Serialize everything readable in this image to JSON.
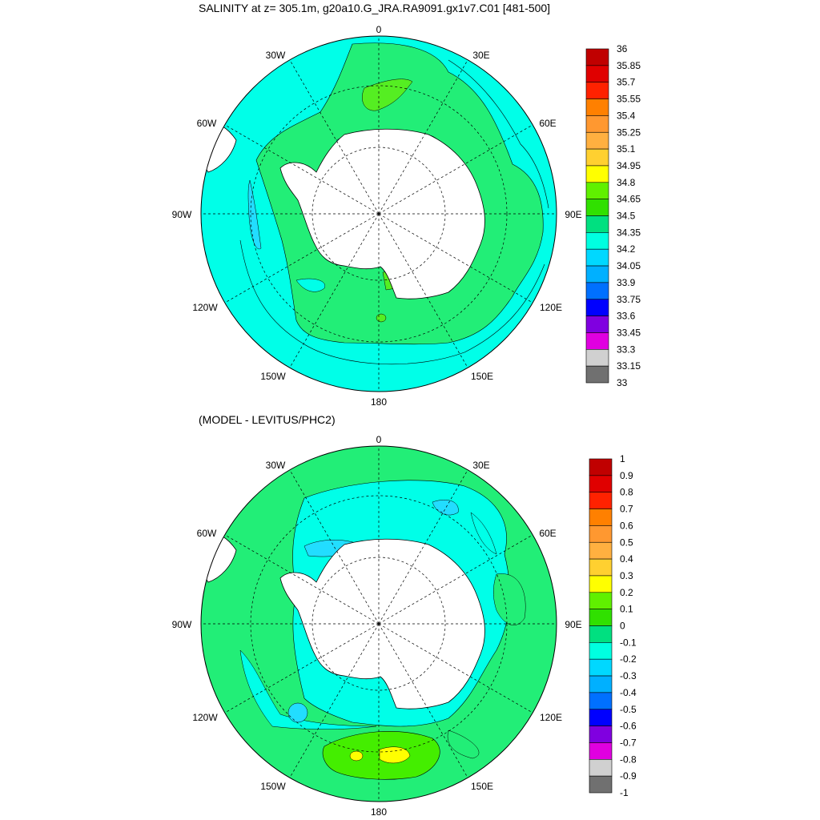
{
  "titles": {
    "top": "SALINITY at z= 305.1m, g20a10.G_JRA.RA9091.gx1v7.C01 [481-500]",
    "bottom": "(MODEL - LEVITUS/PHC2)"
  },
  "longitude_labels": {
    "l0": "0",
    "l30e": "30E",
    "l60e": "60E",
    "l90e": "90E",
    "l120e": "120E",
    "l150e": "150E",
    "l180": "180",
    "l150w": "150W",
    "l120w": "120W",
    "l90w": "90W",
    "l60w": "60W",
    "l30w": "30W"
  },
  "colorbars": {
    "salinity": {
      "labels": [
        "36",
        "35.85",
        "35.7",
        "35.55",
        "35.4",
        "35.25",
        "35.1",
        "34.95",
        "34.8",
        "34.65",
        "34.5",
        "34.35",
        "34.2",
        "34.05",
        "33.9",
        "33.75",
        "33.6",
        "33.45",
        "33.3",
        "33.15",
        "33"
      ],
      "colors": [
        "#c00000",
        "#e00000",
        "#ff2200",
        "#ff8000",
        "#ff9830",
        "#ffb040",
        "#ffd030",
        "#ffff00",
        "#60f000",
        "#30e000",
        "#00e080",
        "#00ffe0",
        "#00d8ff",
        "#00b0ff",
        "#0070ff",
        "#0000ff",
        "#8000e0",
        "#e000e0",
        "#d0d0d0",
        "#707070"
      ]
    },
    "anomaly": {
      "labels": [
        "1",
        "0.9",
        "0.8",
        "0.7",
        "0.6",
        "0.5",
        "0.4",
        "0.3",
        "0.2",
        "0.1",
        "0",
        "-0.1",
        "-0.2",
        "-0.3",
        "-0.4",
        "-0.5",
        "-0.6",
        "-0.7",
        "-0.8",
        "-0.9",
        "-1"
      ],
      "colors": [
        "#c00000",
        "#e00000",
        "#ff2200",
        "#ff8000",
        "#ff9830",
        "#ffb040",
        "#ffd030",
        "#ffff00",
        "#60f000",
        "#30e000",
        "#00e080",
        "#00ffe0",
        "#00d8ff",
        "#00b0ff",
        "#0070ff",
        "#0000ff",
        "#8000e0",
        "#e000e0",
        "#d0d0d0",
        "#707070"
      ]
    }
  },
  "colors": {
    "salinity_outer": "#00ffe8",
    "salinity_band": "#22ee77",
    "salinity_blue": "#22ddff",
    "salinity_lime": "#55ee22",
    "anom_green": "#22ee77",
    "anom_cyan": "#00ffe8",
    "anom_blue": "#22ddff",
    "anom_lime": "#44ee00",
    "anom_yellow": "#ffff00",
    "land": "#ffffff"
  }
}
